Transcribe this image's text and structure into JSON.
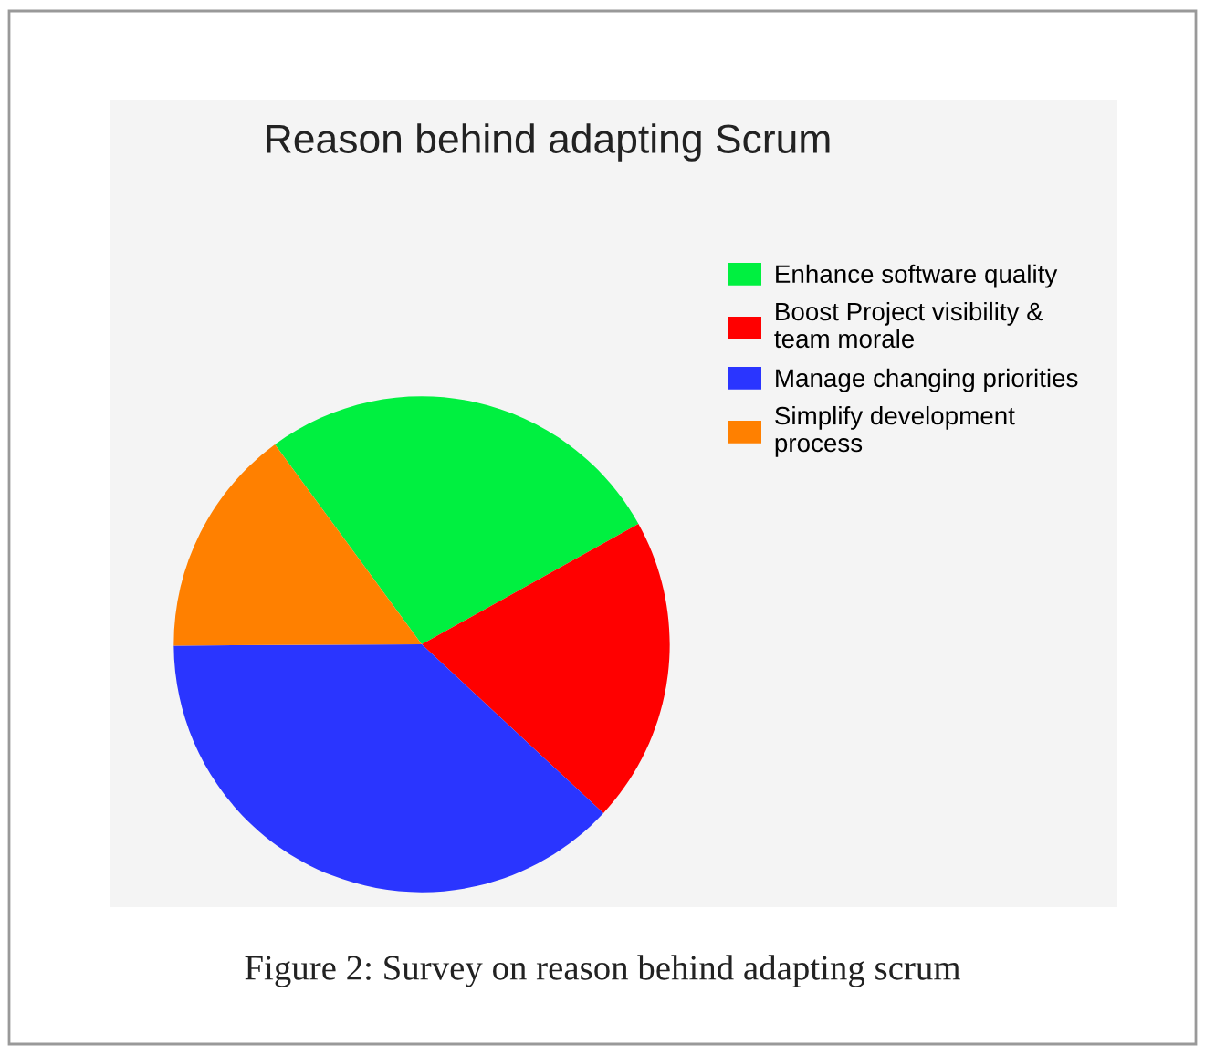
{
  "chart_data": {
    "type": "pie",
    "title": "Reason behind adapting Scrum",
    "categories": [
      "Enhance software quality",
      "Boost Project visibility &\nteam morale",
      "Manage changing priorities",
      "Simplify development\nprocess"
    ],
    "values": [
      27,
      20,
      38,
      15
    ],
    "colors": [
      "#00f040",
      "#ff0000",
      "#2a35ff",
      "#ff8000"
    ],
    "legend": "right",
    "annotations": [
      "Figure 2: Survey on reason behind adapting scrum"
    ]
  }
}
